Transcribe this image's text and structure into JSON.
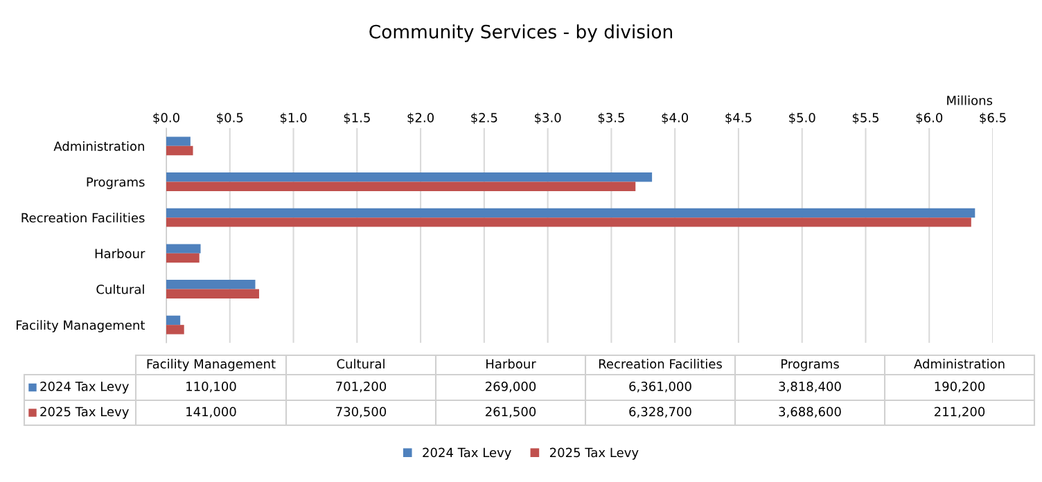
{
  "chart_data": {
    "type": "bar",
    "orientation": "horizontal",
    "title": "Community Services - by division",
    "xlabel": "Millions",
    "categories": [
      "Administration",
      "Programs",
      "Recreation Facilities",
      "Harbour",
      "Cultural",
      "Facility Management"
    ],
    "series": [
      {
        "name": "2024 Tax Levy",
        "color": "#4f81bd",
        "values": [
          0.19,
          3.82,
          6.36,
          0.27,
          0.7,
          0.11
        ]
      },
      {
        "name": "2025 Tax Levy",
        "color": "#c0504d",
        "values": [
          0.21,
          3.69,
          6.33,
          0.26,
          0.73,
          0.14
        ]
      }
    ],
    "annotations": [
      "110,100",
      "701,200",
      "269,000",
      "6,361,000",
      "3,818,400",
      "190,200",
      "141,000",
      "730,500",
      "261,500",
      "6,328,700",
      "3,688,600",
      "211,200"
    ],
    "xlim": [
      0,
      6.5
    ],
    "xticks": [
      {
        "value": 0,
        "label": "$0.0"
      },
      {
        "value": 0.5,
        "label": "$0.5"
      },
      {
        "value": 1,
        "label": "$1.0"
      },
      {
        "value": 1.5,
        "label": "$1.5"
      },
      {
        "value": 2,
        "label": "$2.0"
      },
      {
        "value": 2.5,
        "label": "$2.5"
      },
      {
        "value": 3,
        "label": "$3.0"
      },
      {
        "value": 3.5,
        "label": "$3.5"
      },
      {
        "value": 4,
        "label": "$4.0"
      },
      {
        "value": 4.5,
        "label": "$4.5"
      },
      {
        "value": 5,
        "label": "$5.0"
      },
      {
        "value": 5.5,
        "label": "$5.5"
      },
      {
        "value": 6,
        "label": "$6.0"
      },
      {
        "value": 6.5,
        "label": "$6.5"
      }
    ],
    "grid": "x",
    "legend": "bottom"
  }
}
